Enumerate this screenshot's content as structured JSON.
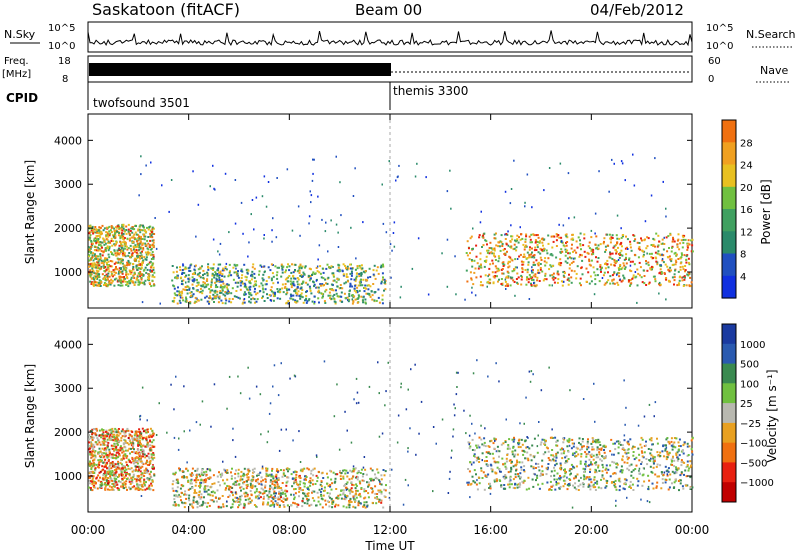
{
  "header": {
    "station": "Saskatoon (fitACF)",
    "beam": "Beam 00",
    "date": "04/Feb/2012"
  },
  "top_labels": {
    "nsky": "N.Sky",
    "nsearch": "N.Search",
    "freq": "Freq.",
    "freq_unit": "[MHz]",
    "nave": "Nave",
    "cpid": "CPID",
    "nsky_ticks": [
      "10^5",
      "10^0"
    ],
    "nsearch_ticks": [
      "10^5",
      "10^0"
    ],
    "freq_ticks": [
      "18",
      "8"
    ],
    "nave_ticks": [
      "60",
      "0"
    ]
  },
  "cpid_segments": [
    {
      "label": "twofsound 3501",
      "start": 0,
      "end": 12
    },
    {
      "label": "themis 3300",
      "start": 12,
      "end": 24
    }
  ],
  "colors": {
    "power": [
      "#1030e0",
      "#2050c0",
      "#2a8a6a",
      "#40a060",
      "#70c040",
      "#e8c020",
      "#f0a020",
      "#f07010",
      "#e82010",
      "#c00000"
    ],
    "velocity": [
      "#1a3aa0",
      "#2a5ab0",
      "#3a8a50",
      "#70c040",
      "#b8b8b0",
      "#e8a020",
      "#f07010",
      "#e82010",
      "#c00000"
    ]
  },
  "chart_data": [
    {
      "type": "heatmap",
      "name": "power",
      "ylabel": "Slant Range [km]",
      "ylim": [
        180,
        4600
      ],
      "yticks": [
        "1000",
        "2000",
        "3000",
        "4000"
      ],
      "colorbar_label": "Power [dB]",
      "colorbar_ticks": [
        "4",
        "8",
        "12",
        "16",
        "20",
        "24",
        "28"
      ],
      "regions": [
        {
          "t0": 0.0,
          "t1": 2.6,
          "r0": 700,
          "r1": 2100,
          "level": 0.55
        },
        {
          "t0": 3.3,
          "t1": 11.8,
          "r0": 300,
          "r1": 1200,
          "level": 0.4
        },
        {
          "t0": 15.0,
          "t1": 24.0,
          "r0": 700,
          "r1": 1900,
          "level": 0.6
        }
      ]
    },
    {
      "type": "heatmap",
      "name": "velocity",
      "ylabel": "Slant Range [km]",
      "ylim": [
        180,
        4600
      ],
      "yticks": [
        "1000",
        "2000",
        "3000",
        "4000"
      ],
      "colorbar_label": "Velocity [m s⁻¹]",
      "colorbar_ticks": [
        "1000",
        "500",
        "100",
        "25",
        "−25",
        "−100",
        "−500",
        "−1000"
      ],
      "regions": [
        {
          "t0": 0.0,
          "t1": 2.6,
          "r0": 700,
          "r1": 2100,
          "level": 0.6
        },
        {
          "t0": 3.3,
          "t1": 11.8,
          "r0": 300,
          "r1": 1200,
          "level": 0.5
        },
        {
          "t0": 15.0,
          "t1": 24.0,
          "r0": 700,
          "r1": 1900,
          "level": 0.45
        }
      ]
    }
  ],
  "x_axis": {
    "label": "Time UT",
    "ticks": [
      "00:00",
      "04:00",
      "08:00",
      "12:00",
      "16:00",
      "20:00",
      "00:00"
    ]
  }
}
